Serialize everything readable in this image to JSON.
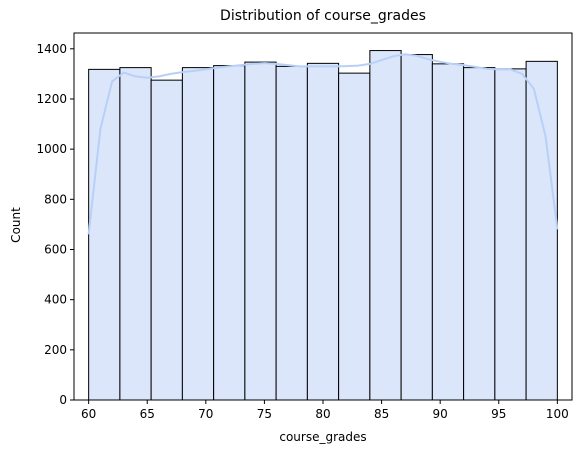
{
  "chart_data": {
    "type": "bar",
    "title": "Distribution of course_grades",
    "xlabel": "course_grades",
    "ylabel": "Count",
    "xlim": [
      58.75,
      101.25
    ],
    "ylim": [
      0,
      1463
    ],
    "x_ticks": [
      60,
      65,
      70,
      75,
      80,
      85,
      90,
      95,
      100
    ],
    "y_ticks": [
      0,
      200,
      400,
      600,
      800,
      1000,
      1200,
      1400
    ],
    "bins": {
      "edges": [
        60,
        62.667,
        65.333,
        68,
        70.667,
        73.333,
        76,
        78.667,
        81.333,
        84,
        86.667,
        89.333,
        92,
        94.667,
        97.333,
        100
      ],
      "counts": [
        1318,
        1325,
        1275,
        1325,
        1333,
        1347,
        1330,
        1342,
        1303,
        1393,
        1377,
        1340,
        1325,
        1320,
        1350
      ]
    },
    "kde": {
      "x": [
        60,
        61,
        62,
        63,
        64,
        65,
        66,
        67,
        68,
        69,
        70,
        71,
        72,
        73,
        74,
        75,
        76,
        77,
        78,
        79,
        80,
        81,
        82,
        83,
        84,
        85,
        86,
        87,
        88,
        89,
        90,
        91,
        92,
        93,
        94,
        95,
        96,
        97,
        98,
        99,
        100
      ],
      "y": [
        660,
        1080,
        1270,
        1305,
        1290,
        1285,
        1290,
        1300,
        1307,
        1312,
        1318,
        1325,
        1330,
        1335,
        1340,
        1343,
        1340,
        1335,
        1330,
        1330,
        1330,
        1330,
        1331,
        1333,
        1340,
        1355,
        1370,
        1378,
        1372,
        1358,
        1348,
        1340,
        1335,
        1328,
        1320,
        1318,
        1318,
        1300,
        1240,
        1050,
        680
      ]
    },
    "colors": {
      "bar_fill": "#dbe6fb",
      "bar_edge": "#000000",
      "kde_line": "#b8d0f8"
    },
    "grid": false,
    "legend": "none"
  }
}
